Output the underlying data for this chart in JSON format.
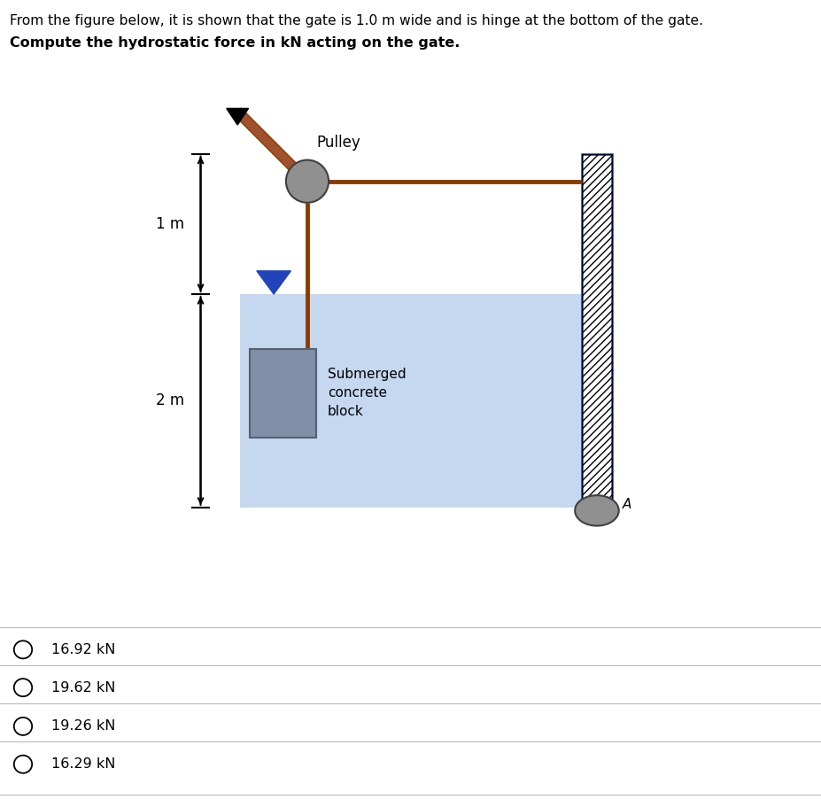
{
  "title_line1": "From the figure below, it is shown that the gate is 1.0 m wide and is hinge at the bottom of the gate.",
  "title_line2": "Compute the hydrostatic force in kN acting on the gate.",
  "label_1m": "1 m",
  "label_2m": "2 m",
  "label_pulley": "Pulley",
  "label_submerged": "Submerged\nconcrete\nblock",
  "label_A": "A",
  "options": [
    "16.92 kN",
    "19.62 kN",
    "19.26 kN",
    "16.29 kN"
  ],
  "water_color": "#c5d8f0",
  "wall_hatch_color": "#2244aa",
  "rope_color": "#8B3A00",
  "block_color": "#8090a8",
  "pulley_color": "#909090",
  "bg_color": "#ffffff"
}
